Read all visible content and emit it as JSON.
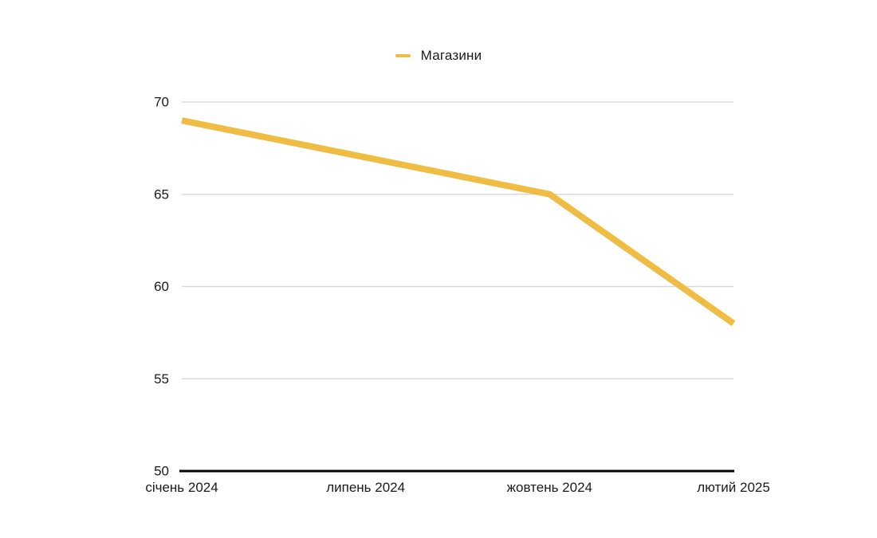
{
  "legend": {
    "label": "Магазини"
  },
  "colors": {
    "series": "#EFBC44",
    "grid": "#DADADA",
    "axis": "#000000",
    "text": "#1A1A1A"
  },
  "chart_data": {
    "type": "line",
    "title": "",
    "xlabel": "",
    "ylabel": "",
    "categories": [
      "січень 2024",
      "липень 2024",
      "жовтень 2024",
      "лютий 2025"
    ],
    "series": [
      {
        "name": "Магазини",
        "values": [
          69,
          67,
          65,
          58
        ]
      }
    ],
    "ylim": [
      50,
      70
    ],
    "yticks": [
      50,
      55,
      60,
      65,
      70
    ],
    "grid": true,
    "legend_position": "top-center",
    "line_width": 8
  }
}
